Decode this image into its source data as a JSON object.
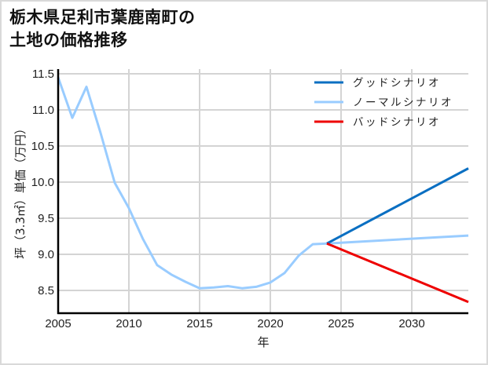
{
  "title_line1": "栃木県足利市葉鹿南町の",
  "title_line2": "土地の価格推移",
  "chart_data": {
    "type": "line",
    "title": "栃木県足利市葉鹿南町の土地の価格推移",
    "xlabel": "年",
    "ylabel": "坪（3.3㎡）単価（万円）",
    "xlim": [
      2005,
      2034
    ],
    "ylim": [
      8.18,
      11.55
    ],
    "x_ticks": [
      2005,
      2010,
      2015,
      2020,
      2025,
      2030
    ],
    "y_ticks": [
      8.5,
      9.0,
      9.5,
      10.0,
      10.5,
      11.0,
      11.5
    ],
    "y_tick_labels": [
      "8.5",
      "9.0",
      "9.5",
      "10.0",
      "10.5",
      "11.0",
      "11.5"
    ],
    "grid": true,
    "legend_position": "upper right",
    "series": [
      {
        "name": "グッドシナリオ",
        "color": "#0a6fc2",
        "x": [
          2024,
          2034
        ],
        "values": [
          9.15,
          10.19
        ]
      },
      {
        "name": "ノーマルシナリオ",
        "color": "#99ccff",
        "x": [
          2005,
          2006,
          2007,
          2008,
          2009,
          2010,
          2011,
          2012,
          2013,
          2014,
          2015,
          2016,
          2017,
          2018,
          2019,
          2020,
          2021,
          2022,
          2023,
          2024,
          2034
        ],
        "values": [
          11.45,
          10.89,
          11.32,
          10.68,
          9.99,
          9.64,
          9.21,
          8.85,
          8.72,
          8.62,
          8.53,
          8.54,
          8.56,
          8.53,
          8.55,
          8.61,
          8.74,
          8.98,
          9.14,
          9.15,
          9.26
        ]
      },
      {
        "name": "バッドシナリオ",
        "color": "#ee0000",
        "x": [
          2024,
          2034
        ],
        "values": [
          9.15,
          8.34
        ]
      }
    ]
  }
}
